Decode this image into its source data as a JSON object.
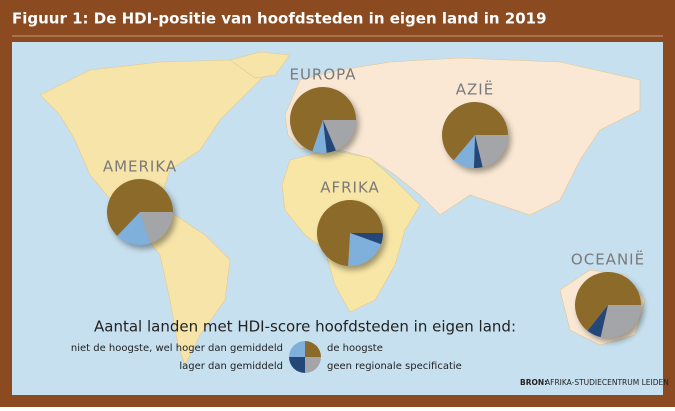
{
  "title": "Figuur 1: De HDI-positie van hoofdsteden in eigen land in 2019",
  "legend": {
    "title": "Aantal landen met HDI-score hoofdsteden in eigen land:",
    "items": [
      {
        "label": "de hoogste",
        "color": "#8c6a2a"
      },
      {
        "label": "niet de hoogste, wel hoger dan gemiddeld",
        "color": "#7fb0dc"
      },
      {
        "label": "lager dan gemiddeld",
        "color": "#24477a"
      },
      {
        "label": "geen regionale specificatie",
        "color": "#a3a5a8"
      }
    ]
  },
  "regions": [
    {
      "name": "EUROPA",
      "values": [
        30,
        3,
        2,
        8
      ]
    },
    {
      "name": "AZIË",
      "values": [
        30,
        5,
        2,
        10
      ]
    },
    {
      "name": "AMERIKA",
      "values": [
        22,
        6,
        0,
        7
      ]
    },
    {
      "name": "AFRIKA",
      "values": [
        40,
        11,
        3,
        0
      ]
    },
    {
      "name": "OCEANIË",
      "values": [
        9,
        0,
        1,
        4
      ]
    }
  ],
  "source": {
    "prefix": "BRON:",
    "text": "AFRIKA-STUDIECENTRUM LEIDEN"
  }
}
